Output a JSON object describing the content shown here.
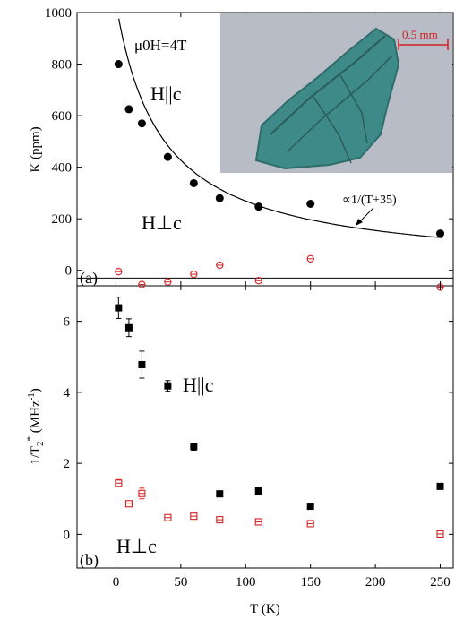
{
  "chart_data": [
    {
      "panel": "a",
      "type": "scatter",
      "panel_label": "(a)",
      "ylabel": "K (ppm)",
      "xlim": [
        -30,
        260
      ],
      "ylim": [
        -60,
        1000
      ],
      "y_ticks": [
        0,
        200,
        400,
        600,
        800,
        1000
      ],
      "field_label": "μ0H=4T",
      "annotation": "∝1/(T+35)",
      "reference_line_y": -30,
      "fit_curve": {
        "form": "C/(T+35)",
        "C": 36300,
        "x_range": [
          -1,
          251
        ]
      },
      "inset_scale_label": "0.5 mm",
      "series": [
        {
          "name": "H||c",
          "marker": "filled-circle",
          "color": "#000000",
          "x": [
            2,
            10,
            20,
            40,
            60,
            80,
            110,
            150,
            250
          ],
          "y": [
            800,
            625,
            570,
            440,
            338,
            280,
            247,
            258,
            143
          ]
        },
        {
          "name": "H⊥c",
          "marker": "open-circle-cross",
          "color": "#d42020",
          "x": [
            2,
            20,
            40,
            60,
            80,
            110,
            150,
            250
          ],
          "y": [
            -5,
            -55,
            -45,
            -15,
            20,
            -40,
            45,
            -65
          ]
        }
      ]
    },
    {
      "panel": "b",
      "type": "scatter",
      "panel_label": "(b)",
      "xlabel": "T (K)",
      "ylabel": "1/T2* (MHz-1)",
      "ylabel_parts": {
        "base": "1/T",
        "sub": "2",
        "sup": "*",
        "unit": " (MHz",
        "unit_sup": "-1",
        "close": ")"
      },
      "xlim": [
        -30,
        260
      ],
      "ylim": [
        -0.95,
        7.0
      ],
      "x_ticks": [
        0,
        50,
        100,
        150,
        200,
        250
      ],
      "y_ticks": [
        0,
        2,
        4,
        6
      ],
      "series": [
        {
          "name": "H||c",
          "marker": "filled-square",
          "color": "#000000",
          "x": [
            2,
            10,
            20,
            40,
            60,
            80,
            110,
            150,
            250
          ],
          "y": [
            6.38,
            5.82,
            4.78,
            4.18,
            2.47,
            1.14,
            1.22,
            0.79,
            1.35
          ],
          "err": [
            0.3,
            0.25,
            0.38,
            0.15,
            0.1,
            0.05,
            0.05,
            0.05,
            0.05
          ]
        },
        {
          "name": "H⊥c",
          "marker": "open-square-cross",
          "color": "#d42020",
          "x": [
            2,
            10,
            20,
            40,
            60,
            80,
            110,
            150,
            250
          ],
          "y": [
            1.44,
            0.86,
            1.15,
            0.47,
            0.51,
            0.41,
            0.35,
            0.3,
            0.01
          ],
          "err": [
            0.1,
            0.04,
            0.15,
            0.04,
            0.04,
            0.05,
            0.05,
            0.05,
            0.03
          ]
        }
      ]
    }
  ]
}
